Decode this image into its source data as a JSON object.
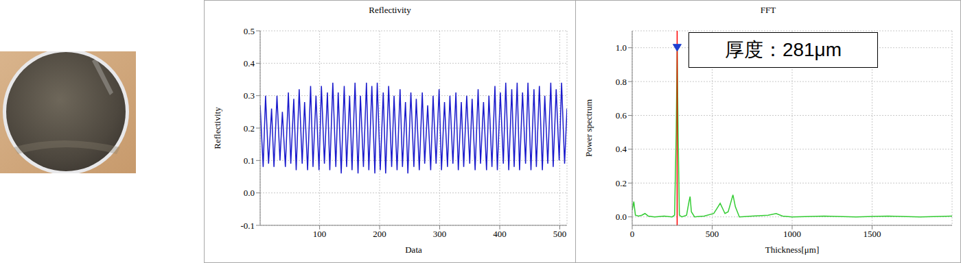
{
  "chart_data": [
    {
      "type": "line",
      "title": "Reflectivity",
      "x_label": "Data",
      "y_label": "Reflectivity",
      "color": "#1a1acc",
      "grid": true,
      "xlim": [
        1,
        512
      ],
      "xticks": [
        100,
        200,
        300,
        400,
        500
      ],
      "ylim": [
        -0.1,
        0.5
      ],
      "yticks": [
        -0.1,
        {
          "value": 0,
          "label": "0.0"
        },
        0.1,
        0.2,
        0.3,
        0.4,
        0.5
      ],
      "x": [
        1,
        6,
        10,
        15,
        20,
        24,
        29,
        34,
        38,
        43,
        48,
        52,
        57,
        61,
        66,
        71,
        75,
        80,
        85,
        89,
        94,
        99,
        103,
        108,
        113,
        117,
        122,
        127,
        131,
        136,
        141,
        145,
        150,
        154,
        159,
        164,
        168,
        173,
        178,
        182,
        187,
        192,
        196,
        201,
        206,
        210,
        215,
        220,
        224,
        229,
        234,
        238,
        243,
        247,
        252,
        257,
        261,
        266,
        271,
        275,
        280,
        285,
        289,
        294,
        299,
        303,
        308,
        313,
        317,
        322,
        327,
        331,
        336,
        340,
        345,
        350,
        354,
        359,
        364,
        368,
        373,
        378,
        382,
        387,
        392,
        396,
        401,
        406,
        410,
        415,
        420,
        424,
        429,
        433,
        438,
        443,
        447,
        452,
        457,
        461,
        466,
        471,
        475,
        480,
        485,
        489,
        494,
        499,
        503,
        508,
        512
      ],
      "values": [
        0.27,
        0.08,
        0.3,
        0.09,
        0.26,
        0.08,
        0.3,
        0.1,
        0.25,
        0.08,
        0.31,
        0.09,
        0.29,
        0.07,
        0.32,
        0.09,
        0.28,
        0.07,
        0.33,
        0.08,
        0.3,
        0.07,
        0.33,
        0.09,
        0.31,
        0.07,
        0.34,
        0.08,
        0.31,
        0.06,
        0.33,
        0.08,
        0.3,
        0.07,
        0.34,
        0.06,
        0.3,
        0.08,
        0.34,
        0.07,
        0.33,
        0.06,
        0.34,
        0.07,
        0.31,
        0.06,
        0.33,
        0.08,
        0.3,
        0.07,
        0.32,
        0.08,
        0.28,
        0.06,
        0.31,
        0.08,
        0.29,
        0.07,
        0.31,
        0.09,
        0.27,
        0.07,
        0.3,
        0.09,
        0.32,
        0.07,
        0.28,
        0.08,
        0.3,
        0.09,
        0.31,
        0.07,
        0.28,
        0.08,
        0.3,
        0.09,
        0.29,
        0.07,
        0.32,
        0.09,
        0.28,
        0.07,
        0.3,
        0.08,
        0.33,
        0.07,
        0.31,
        0.09,
        0.34,
        0.07,
        0.32,
        0.08,
        0.34,
        0.07,
        0.31,
        0.09,
        0.34,
        0.07,
        0.32,
        0.08,
        0.33,
        0.07,
        0.3,
        0.09,
        0.34,
        0.08,
        0.32,
        0.1,
        0.34,
        0.09,
        0.26
      ]
    },
    {
      "type": "line",
      "title": "FFT",
      "x_label": "Thickness[μm]",
      "y_label": "Power spectrum",
      "color": "#33cc33",
      "grid": true,
      "xlim": [
        0,
        2000
      ],
      "xticks": [
        0,
        500,
        1000,
        1500
      ],
      "ylim": [
        -0.05,
        1.1
      ],
      "yticks": [
        {
          "value": 0,
          "label": "0.0"
        },
        0.2,
        0.4,
        0.6,
        0.8,
        {
          "value": 1,
          "label": "1.0"
        }
      ],
      "x": [
        0,
        10,
        20,
        40,
        60,
        80,
        100,
        140,
        200,
        250,
        265,
        275,
        281,
        287,
        295,
        310,
        340,
        355,
        362,
        370,
        390,
        450,
        510,
        530,
        550,
        565,
        580,
        600,
        615,
        630,
        645,
        670,
        750,
        850,
        900,
        940,
        1000,
        1200,
        1400,
        1600,
        1800,
        2000
      ],
      "values": [
        0.04,
        0.09,
        0.01,
        0.005,
        0.01,
        0.02,
        0.005,
        0.0,
        0.005,
        0.0,
        0.01,
        0.5,
        1.0,
        0.5,
        0.01,
        0.0,
        0.01,
        0.09,
        0.12,
        0.03,
        0.0,
        0.005,
        0.02,
        0.05,
        0.08,
        0.05,
        0.02,
        0.03,
        0.08,
        0.13,
        0.06,
        0.0,
        0.005,
        0.01,
        0.02,
        0.005,
        0.0,
        0.005,
        0.0,
        0.005,
        0.0,
        0.005
      ],
      "peak": {
        "x": 281,
        "y": 1.0,
        "line_color": "#ff0000",
        "marker_color": "#1f3fcf",
        "marker": "triangle-down"
      },
      "annotations": [
        {
          "text": "厚度：281μm"
        }
      ]
    }
  ]
}
